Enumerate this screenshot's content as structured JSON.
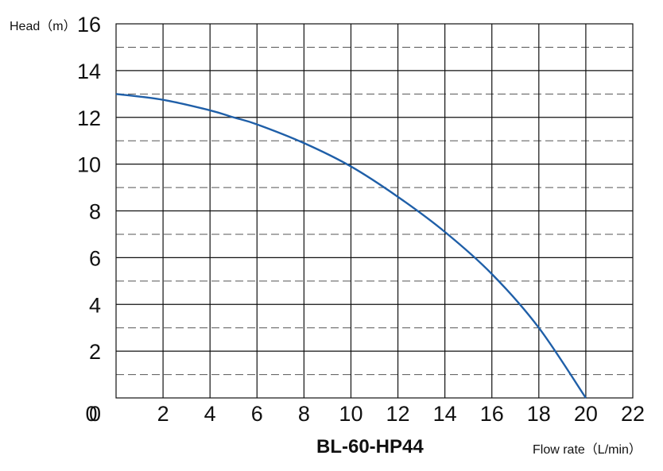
{
  "chart_data": {
    "type": "line",
    "title": "BL-60-HP44",
    "ylabel": "Head（m）",
    "xlabel": "Flow rate（L/min）",
    "xlim": [
      0,
      22
    ],
    "ylim": [
      0,
      16
    ],
    "x_ticks": [
      "0",
      "2",
      "4",
      "6",
      "8",
      "10",
      "12",
      "14",
      "16",
      "18",
      "20",
      "22"
    ],
    "y_ticks": [
      "0",
      "2",
      "4",
      "6",
      "8",
      "10",
      "12",
      "14",
      "16"
    ],
    "grid": {
      "major": true,
      "minor_dashed": true,
      "minor_step": 1
    },
    "series": [
      {
        "color": "#1f5fa8",
        "x": [
          0,
          2,
          4,
          5,
          6,
          8,
          10,
          12,
          14,
          16,
          18,
          20
        ],
        "y": [
          13.0,
          12.75,
          12.3,
          12.0,
          11.7,
          10.9,
          9.9,
          8.6,
          7.1,
          5.3,
          3.0,
          0.0
        ]
      }
    ]
  }
}
